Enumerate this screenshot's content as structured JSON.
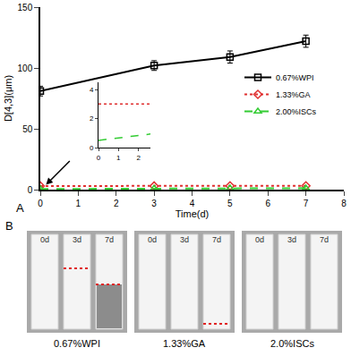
{
  "chart_data": {
    "type": "line",
    "x_label": "Time(d)",
    "y_label": "D[4,3](μm)",
    "x": [
      0,
      3,
      5,
      7
    ],
    "xlim": [
      0,
      8
    ],
    "xticks": [
      0,
      1,
      2,
      3,
      4,
      5,
      6,
      7,
      8
    ],
    "ylim": [
      0,
      150
    ],
    "yticks": [
      0,
      50,
      100,
      150
    ],
    "grid": false,
    "legend": "upper right",
    "series": [
      {
        "name": "0.67%WPI",
        "color": "#000000",
        "marker": "square",
        "line_style": "solid",
        "values": [
          81,
          102,
          109,
          122
        ],
        "error": [
          4,
          4,
          5,
          5
        ]
      },
      {
        "name": "1.33%GA",
        "color": "#e03030",
        "marker": "diamond",
        "line_style": "dot",
        "values": [
          3.0,
          3.0,
          3.1,
          3.1
        ]
      },
      {
        "name": "2.00%ISCs",
        "color": "#33cc33",
        "marker": "triangle-up",
        "line_style": "dash",
        "values": [
          0.5,
          1.0,
          1.1,
          1.2
        ]
      }
    ],
    "inset": {
      "xlim": [
        0,
        2.6
      ],
      "ylim": [
        0,
        4.5
      ],
      "xticks": [
        0,
        1,
        2
      ],
      "yticks": [
        0,
        2,
        4
      ]
    }
  },
  "panel_labels": [
    "A",
    "B"
  ],
  "photos": [
    {
      "caption": "0.67%WPI",
      "days": [
        "0d",
        "3d",
        "7d"
      ]
    },
    {
      "caption": "1.33%GA",
      "days": [
        "0d",
        "3d",
        "7d"
      ]
    },
    {
      "caption": "2.0%ISCs",
      "days": [
        "0d",
        "3d",
        "7d"
      ]
    }
  ]
}
